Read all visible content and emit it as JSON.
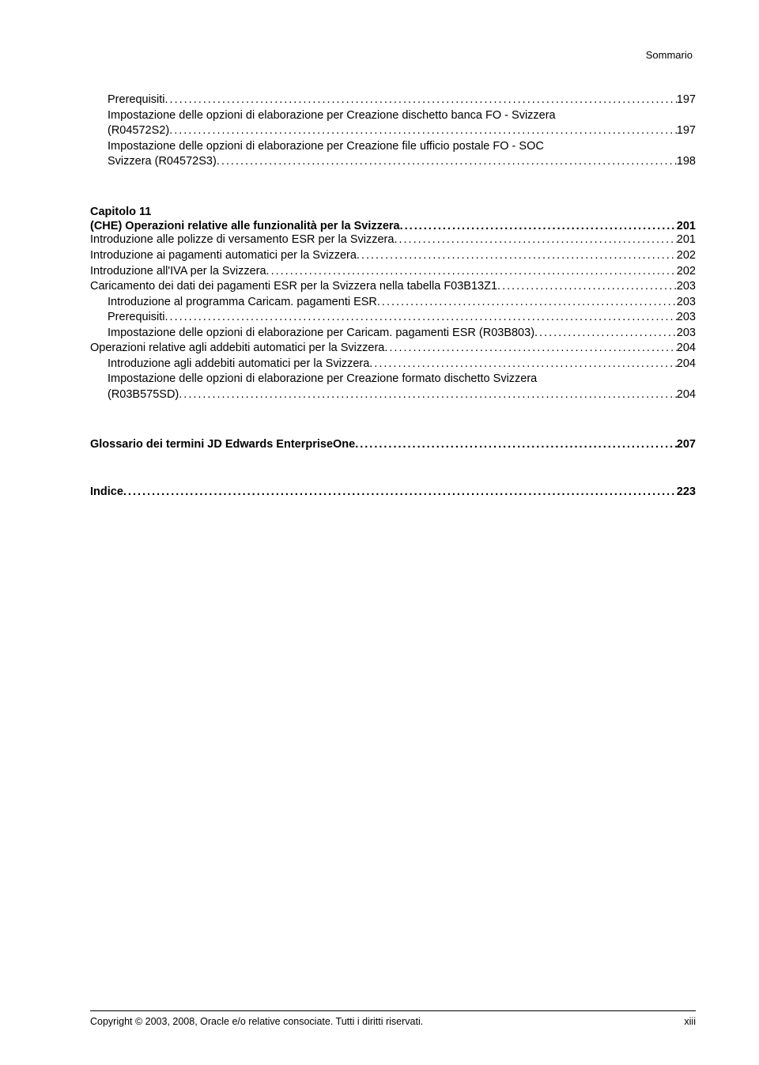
{
  "header": {
    "running_title": "Sommario"
  },
  "toc": {
    "section_a": [
      {
        "indent": 1,
        "label": "Prerequisiti",
        "page": "197"
      },
      {
        "indent": 1,
        "label_lines": [
          "Impostazione delle opzioni di elaborazione per Creazione dischetto banca FO - Svizzera",
          "(R04572S2)"
        ],
        "page": "197"
      },
      {
        "indent": 1,
        "label_lines": [
          "Impostazione delle opzioni di elaborazione per Creazione file ufficio postale FO - SOC",
          "Svizzera (R04572S3)"
        ],
        "page": "198"
      }
    ],
    "chapter": {
      "number": "Capitolo 11",
      "title": "(CHE) Operazioni relative alle funzionalità per la Svizzera",
      "page": "201"
    },
    "section_b": [
      {
        "indent": 0,
        "label": "Introduzione alle polizze di versamento ESR per la Svizzera",
        "page": "201"
      },
      {
        "indent": 0,
        "label": "Introduzione ai pagamenti automatici per la Svizzera",
        "page": "202"
      },
      {
        "indent": 0,
        "label": "Introduzione all'IVA per la Svizzera",
        "page": "202"
      },
      {
        "indent": 0,
        "label": "Caricamento dei dati dei pagamenti ESR per la Svizzera nella tabella F03B13Z1",
        "page": "203"
      },
      {
        "indent": 1,
        "label": "Introduzione al programma Caricam. pagamenti ESR",
        "page": "203"
      },
      {
        "indent": 1,
        "label": "Prerequisiti",
        "page": "203"
      },
      {
        "indent": 1,
        "label": "Impostazione delle opzioni di elaborazione per Caricam. pagamenti ESR (R03B803)",
        "page": "203"
      },
      {
        "indent": 0,
        "label": "Operazioni relative agli addebiti automatici per la Svizzera",
        "page": "204"
      },
      {
        "indent": 1,
        "label": "Introduzione agli addebiti automatici per la Svizzera",
        "page": "204"
      },
      {
        "indent": 1,
        "label_lines": [
          "Impostazione delle opzioni di elaborazione per Creazione formato dischetto Svizzera",
          "(R03B575SD)"
        ],
        "page": "204"
      }
    ],
    "glossary": {
      "label": "Glossario dei termini JD Edwards EnterpriseOne",
      "page": "207"
    },
    "index": {
      "label": "Indice",
      "page": "223"
    }
  },
  "footer": {
    "copyright": "Copyright © 2003, 2008, Oracle e/o relative consociate. Tutti i diritti riservati.",
    "page_number": "xiii"
  }
}
